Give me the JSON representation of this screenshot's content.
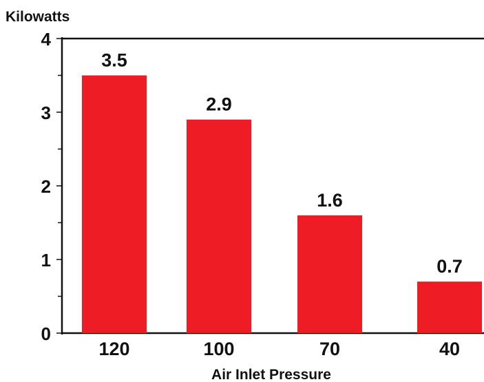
{
  "chart_data": {
    "type": "bar",
    "title": "",
    "ylabel": "Kilowatts",
    "xlabel": "Air Inlet Pressure",
    "categories": [
      "120",
      "100",
      "70",
      "40"
    ],
    "values": [
      3.5,
      2.9,
      1.6,
      0.7
    ],
    "data_labels": [
      "3.5",
      "2.9",
      "1.6",
      "0.7"
    ],
    "yticks": [
      "0",
      "1",
      "2",
      "3",
      "4"
    ],
    "ylim": [
      0,
      4
    ],
    "grid": false,
    "bar_color": "#ee1c25"
  }
}
